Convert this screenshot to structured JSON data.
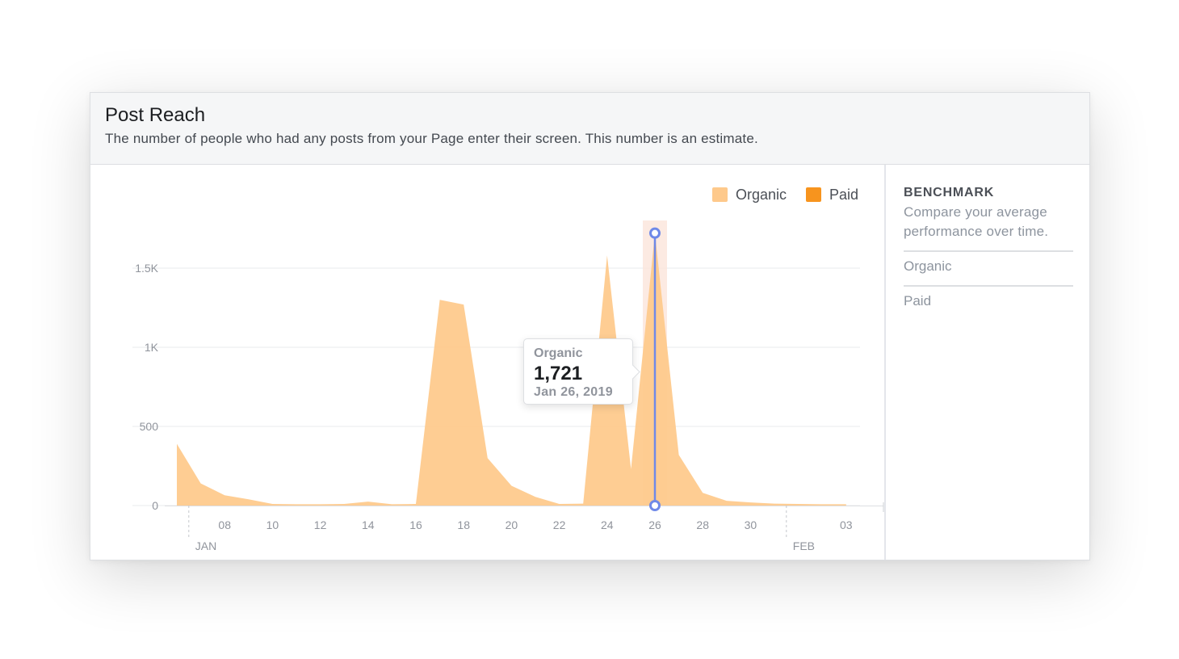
{
  "header": {
    "title": "Post Reach",
    "description": "The number of people who had any posts from your Page enter their screen. This number is an estimate."
  },
  "sidebar": {
    "title": "BENCHMARK",
    "description": "Compare your average performance over time.",
    "items": [
      {
        "label": "Organic"
      },
      {
        "label": "Paid"
      }
    ]
  },
  "tooltip": {
    "series": "Organic",
    "value": "1,721",
    "date": "Jan 26, 2019"
  },
  "colors": {
    "organic": "#fec98b",
    "paid": "#f7941e",
    "highlight": "#fbe3d8",
    "cursor": "#6f89e8",
    "grid": "#e9ebee",
    "axis_text": "#90949c"
  },
  "chart_data": {
    "type": "area",
    "title": "",
    "xlabel": "",
    "ylabel": "",
    "ylim": [
      0,
      1800
    ],
    "yticks": [
      0,
      500,
      1000,
      1500
    ],
    "ytick_labels": [
      "0",
      "500",
      "1K",
      "1.5K"
    ],
    "x_tick_labels": [
      "08",
      "10",
      "12",
      "14",
      "16",
      "18",
      "20",
      "22",
      "24",
      "26",
      "28",
      "30",
      "03"
    ],
    "x_tick_dates": [
      "2019-01-08",
      "2019-01-10",
      "2019-01-12",
      "2019-01-14",
      "2019-01-16",
      "2019-01-18",
      "2019-01-20",
      "2019-01-22",
      "2019-01-24",
      "2019-01-26",
      "2019-01-28",
      "2019-01-30",
      "2019-02-03"
    ],
    "x_month_labels": [
      {
        "label": "JAN",
        "date": "2019-01-07"
      },
      {
        "label": "FEB",
        "date": "2019-02-01"
      }
    ],
    "x_range": [
      "2019-01-06",
      "2019-02-04"
    ],
    "legend": {
      "position": "top-right",
      "entries": [
        "Organic",
        "Paid"
      ]
    },
    "grid": true,
    "highlight": {
      "date": "2019-01-26",
      "value": 1721
    },
    "x": [
      "2019-01-06",
      "2019-01-07",
      "2019-01-08",
      "2019-01-09",
      "2019-01-10",
      "2019-01-11",
      "2019-01-12",
      "2019-01-13",
      "2019-01-14",
      "2019-01-15",
      "2019-01-16",
      "2019-01-17",
      "2019-01-18",
      "2019-01-19",
      "2019-01-20",
      "2019-01-21",
      "2019-01-22",
      "2019-01-23",
      "2019-01-24",
      "2019-01-25",
      "2019-01-26",
      "2019-01-27",
      "2019-01-28",
      "2019-01-29",
      "2019-01-30",
      "2019-01-31",
      "2019-02-01",
      "2019-02-02",
      "2019-02-03"
    ],
    "series": [
      {
        "name": "Organic",
        "values": [
          390,
          140,
          65,
          40,
          10,
          8,
          8,
          10,
          25,
          8,
          10,
          1300,
          1270,
          300,
          125,
          55,
          10,
          12,
          1580,
          230,
          1721,
          320,
          80,
          30,
          20,
          12,
          10,
          8,
          8
        ]
      },
      {
        "name": "Paid",
        "values": [
          0,
          0,
          0,
          0,
          0,
          0,
          0,
          0,
          0,
          0,
          0,
          0,
          0,
          0,
          0,
          0,
          0,
          0,
          0,
          0,
          0,
          0,
          0,
          0,
          0,
          0,
          0,
          0,
          0
        ]
      }
    ]
  }
}
